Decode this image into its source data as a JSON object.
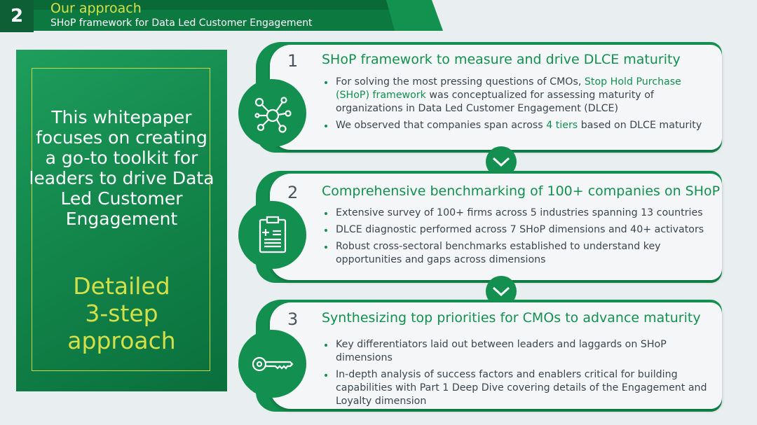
{
  "header": {
    "page_number": "2",
    "title": "Our approach",
    "subtitle": "SHoP framework for Data Led Customer Engagement"
  },
  "left_panel": {
    "text_lines": [
      "This whitepaper",
      "focuses on creating",
      "a go-to toolkit for",
      "leaders to drive Data",
      "Led Customer",
      "Engagement"
    ],
    "accent_lines": [
      "Detailed",
      "3-step",
      "approach"
    ]
  },
  "steps": [
    {
      "number": "1",
      "title": "SHoP framework to measure and drive DLCE maturity",
      "icon": "network-icon",
      "bullets": [
        {
          "segments": [
            "For solving the most pressing questions of CMOs, ",
            "Stop Hold Purchase (SHoP) framework",
            " was conceptualized for assessing maturity of organizations in Data Led Customer Engagement (DLCE)"
          ]
        },
        {
          "segments": [
            "We observed that companies span across ",
            "4 tiers",
            " based on DLCE maturity"
          ]
        }
      ]
    },
    {
      "number": "2",
      "title": "Comprehensive benchmarking of 100+ companies on SHoP",
      "icon": "clipboard-icon",
      "bullets": [
        {
          "segments": [
            "Extensive survey of 100+ firms across 5 industries spanning 13 countries"
          ]
        },
        {
          "segments": [
            "DLCE diagnostic performed across 7 SHoP dimensions and 40+ activators"
          ]
        },
        {
          "segments": [
            "Robust cross-sectoral benchmarks established to understand key opportunities and gaps across dimensions"
          ]
        }
      ]
    },
    {
      "number": "3",
      "title": "Synthesizing top priorities for CMOs to advance maturity",
      "icon": "key-icon",
      "bullets": [
        {
          "segments": [
            "Key differentiators laid out between leaders and laggards on SHoP dimensions"
          ]
        },
        {
          "segments": [
            "In-depth analysis of success factors and enablers critical for building capabilities with Part 1 Deep Dive covering details of the Engagement and Loyalty dimension"
          ]
        }
      ]
    }
  ],
  "colors": {
    "brand_green": "#13904f",
    "accent_lime": "#d3e04a",
    "text_dark": "#3c4650"
  }
}
